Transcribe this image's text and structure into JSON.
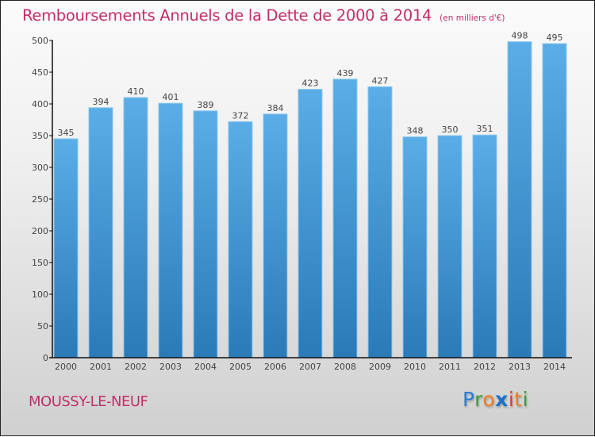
{
  "title": "Remboursements Annuels de la Dette de 2000 à 2014",
  "unit_label": "(en milliers d'€)",
  "city": "MOUSSY-LE-NEUF",
  "logo": {
    "text": "Proxiti",
    "letters": [
      {
        "char": "P",
        "color": "#2a7fd4"
      },
      {
        "char": "r",
        "color": "#3a9a3a"
      },
      {
        "char": "o",
        "color": "#f07c1c"
      },
      {
        "char": "x",
        "color": "#1f6fc8"
      },
      {
        "char": "i",
        "color": "#e23a2a"
      },
      {
        "char": "t",
        "color": "#f07c1c"
      },
      {
        "char": "i",
        "color": "#3a9a3a"
      }
    ]
  },
  "colors": {
    "title": "#c0306a",
    "bar_top": "#5aade6",
    "bar_bottom": "#2a7ab8",
    "bar_edge": "#8cc8f0",
    "axis": "#111111"
  },
  "chart_data": {
    "type": "bar",
    "title": "Remboursements Annuels de la Dette de 2000 à 2014",
    "subtitle": "(en milliers d'€)",
    "xlabel": "",
    "ylabel": "",
    "categories": [
      "2000",
      "2001",
      "2002",
      "2003",
      "2004",
      "2005",
      "2006",
      "2007",
      "2008",
      "2009",
      "2010",
      "2011",
      "2012",
      "2013",
      "2014"
    ],
    "values": [
      345,
      394,
      410,
      401,
      389,
      372,
      384,
      423,
      439,
      427,
      348,
      350,
      351,
      498,
      495
    ],
    "ylim": [
      0,
      500
    ],
    "yticks": [
      0,
      50,
      100,
      150,
      200,
      250,
      300,
      350,
      400,
      450,
      500
    ],
    "grid": false,
    "legend": "none",
    "data_labels": true
  }
}
